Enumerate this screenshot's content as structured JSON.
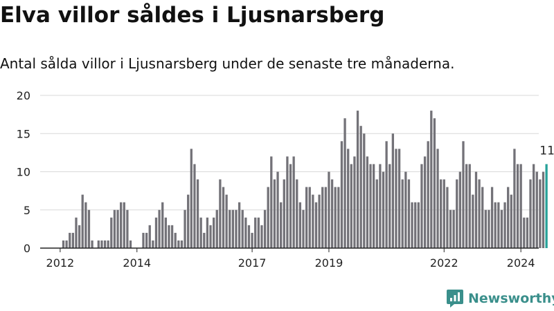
{
  "title": "Elva villor såldes i Ljusnarsberg",
  "subtitle": "Antal sålda villor i Ljusnarsberg under de senaste tre månaderna.",
  "brand": "Newsworthy",
  "colors": {
    "bar": "#737278",
    "highlight": "#26a199",
    "grid": "#d9d9d9",
    "axis": "#222222",
    "brand": "#3a8f8b"
  },
  "chart_data": {
    "type": "bar",
    "ylim": [
      0,
      20
    ],
    "yticks": [
      0,
      5,
      10,
      15,
      20
    ],
    "xticks": [
      "2012",
      "2014",
      "2017",
      "2019",
      "2022",
      "2024"
    ],
    "x_start": "2012-02",
    "highlight_label": "11",
    "values": [
      1,
      1,
      2,
      2,
      4,
      3,
      7,
      6,
      5,
      1,
      0,
      1,
      1,
      1,
      1,
      4,
      5,
      5,
      6,
      6,
      5,
      1,
      0,
      0,
      0,
      2,
      2,
      3,
      1,
      4,
      5,
      6,
      4,
      3,
      3,
      2,
      1,
      1,
      5,
      7,
      13,
      11,
      9,
      4,
      2,
      4,
      3,
      4,
      5,
      9,
      8,
      7,
      5,
      5,
      5,
      6,
      5,
      4,
      3,
      2,
      4,
      4,
      3,
      5,
      8,
      12,
      9,
      10,
      6,
      9,
      12,
      11,
      12,
      9,
      6,
      5,
      8,
      8,
      7,
      6,
      7,
      8,
      8,
      10,
      9,
      8,
      8,
      14,
      17,
      13,
      11,
      12,
      18,
      16,
      15,
      12,
      11,
      11,
      9,
      11,
      10,
      14,
      11,
      15,
      13,
      13,
      9,
      10,
      9,
      6,
      6,
      6,
      11,
      12,
      14,
      18,
      17,
      13,
      9,
      9,
      8,
      5,
      5,
      9,
      10,
      14,
      11,
      11,
      7,
      10,
      9,
      8,
      5,
      5,
      8,
      6,
      6,
      5,
      6,
      8,
      7,
      13,
      11,
      11,
      4,
      4,
      9,
      11,
      10,
      9,
      10,
      11
    ]
  }
}
